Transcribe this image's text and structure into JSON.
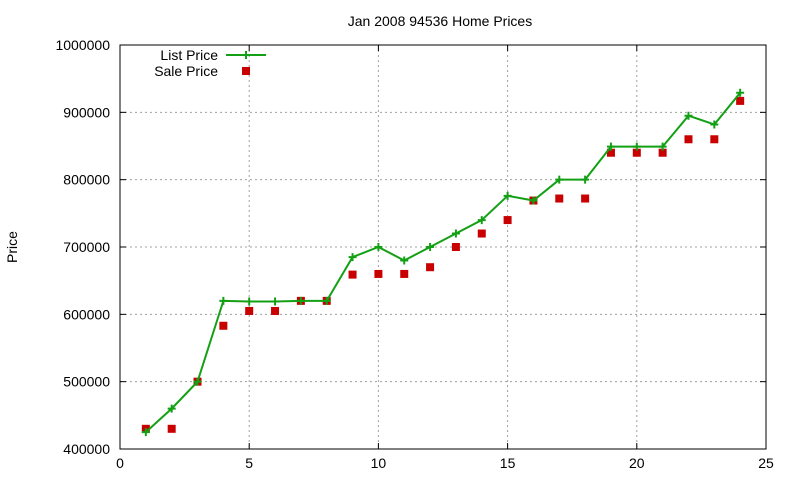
{
  "chart_data": {
    "type": "line",
    "title": "Jan 2008 94536 Home Prices",
    "xlabel": "",
    "ylabel": "Price",
    "xlim": [
      0,
      25
    ],
    "ylim": [
      400000,
      1000000
    ],
    "xticks": [
      0,
      5,
      10,
      15,
      20,
      25
    ],
    "yticks": [
      400000,
      500000,
      600000,
      700000,
      800000,
      900000,
      1000000
    ],
    "xtick_labels": [
      "0",
      "5",
      "10",
      "15",
      "20",
      "25"
    ],
    "ytick_labels": [
      "400000",
      "500000",
      "600000",
      "700000",
      "800000",
      "900000",
      "1000000"
    ],
    "grid": true,
    "legend_position": "top-left",
    "x": [
      1,
      2,
      3,
      4,
      5,
      6,
      7,
      8,
      9,
      10,
      11,
      12,
      13,
      14,
      15,
      16,
      17,
      18,
      19,
      20,
      21,
      22,
      23,
      24
    ],
    "series": [
      {
        "name": "List Price",
        "style": "line-with-plus-markers",
        "color": "#14a014",
        "values": [
          425000,
          460000,
          500000,
          620000,
          619000,
          619000,
          620000,
          620000,
          685000,
          700000,
          680000,
          700000,
          720000,
          740000,
          776000,
          769000,
          800000,
          800000,
          849000,
          849000,
          849000,
          895000,
          882000,
          929000
        ]
      },
      {
        "name": "Sale Price",
        "style": "square-points",
        "color": "#c80000",
        "values": [
          430000,
          430000,
          500000,
          583000,
          605000,
          605000,
          620000,
          620000,
          659000,
          660000,
          660000,
          670000,
          700000,
          720000,
          740000,
          769000,
          772000,
          772000,
          840000,
          840000,
          840000,
          860000,
          860000,
          917000
        ]
      }
    ]
  }
}
